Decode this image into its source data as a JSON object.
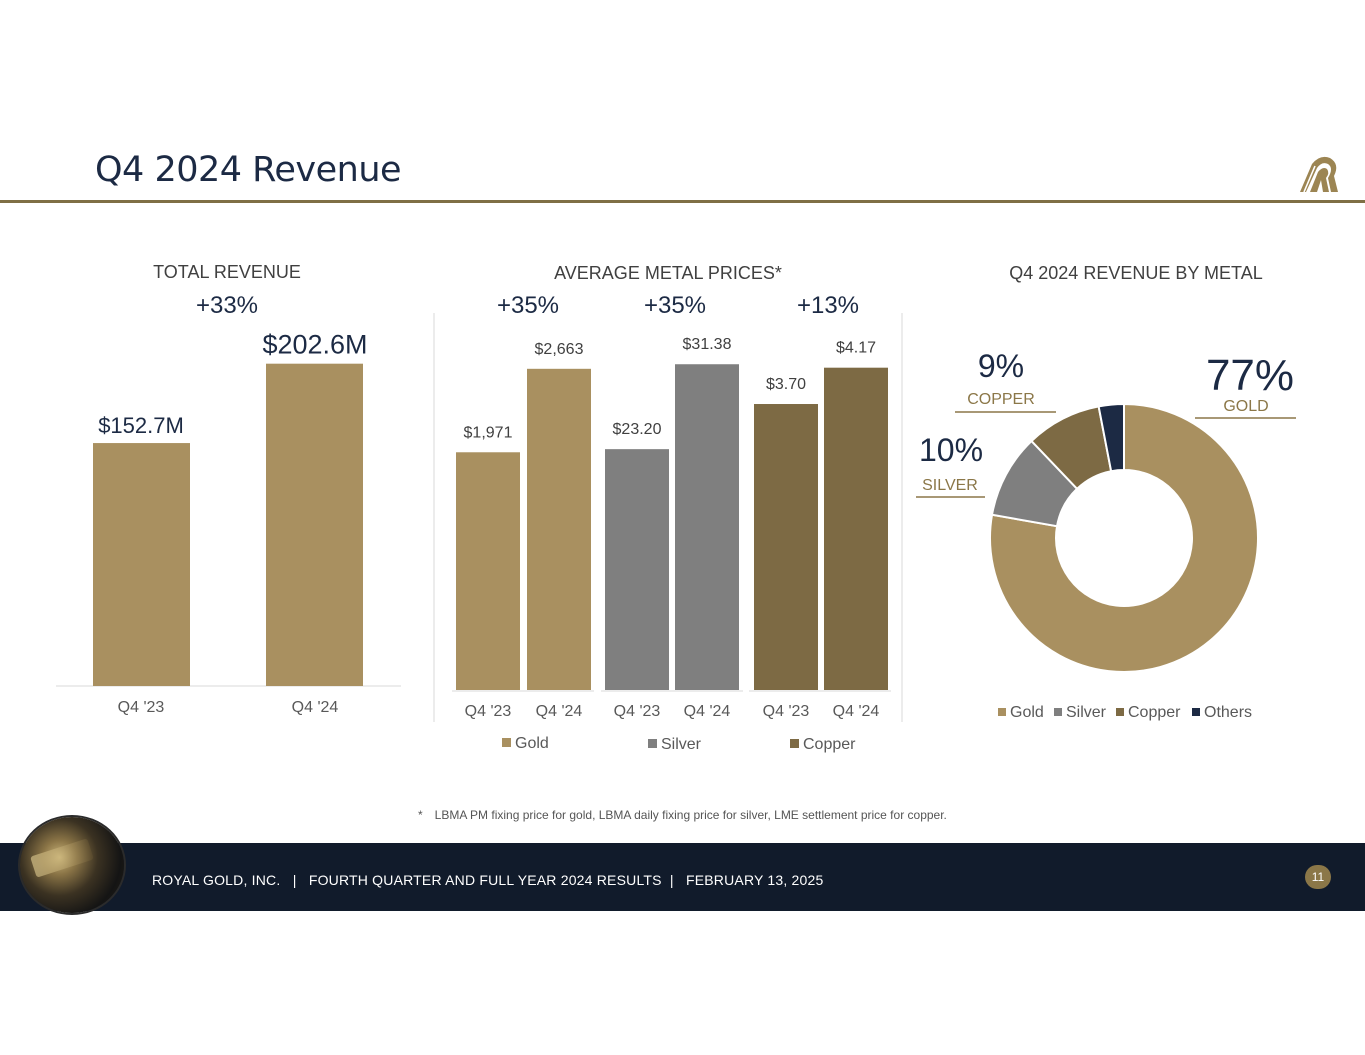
{
  "slide": {
    "title": "Q4 2024 Revenue",
    "footnote_star": "*",
    "footnote": "LBMA PM fixing price for gold, LBMA daily fixing price for silver, LME settlement price for copper.",
    "footer_text": "ROYAL GOLD, INC.   |   FOURTH QUARTER AND FULL YEAR 2024 RESULTS  |   FEBRUARY 13, 2025",
    "page_number": "11"
  },
  "colors": {
    "gold": "#a99060",
    "silver": "#7f7f7f",
    "copper": "#7d6a44",
    "others": "#1c2a44",
    "navy": "#1c2a44",
    "accent_text": "#8b7748",
    "footer_bg": "#111b2b"
  },
  "chart_data": [
    {
      "type": "bar",
      "title": "TOTAL REVENUE",
      "change_label": "+33%",
      "categories": [
        "Q4 '23",
        "Q4 '24"
      ],
      "values": [
        152.7,
        202.6
      ],
      "value_labels": [
        "$152.7M",
        "$202.6M"
      ],
      "units": "$M",
      "ylim": [
        0,
        220
      ]
    },
    {
      "type": "bar",
      "title": "AVERAGE METAL PRICES*",
      "groups": [
        {
          "name": "Gold",
          "change_label": "+35%",
          "categories": [
            "Q4 '23",
            "Q4 '24"
          ],
          "values": [
            1971,
            2663
          ],
          "value_labels": [
            "$1,971",
            "$2,663"
          ],
          "scale_max": 2935,
          "color": "#a99060"
        },
        {
          "name": "Silver",
          "change_label": "+35%",
          "categories": [
            "Q4 '23",
            "Q4 '24"
          ],
          "values": [
            23.2,
            31.38
          ],
          "value_labels": [
            "$23.20",
            "$31.38"
          ],
          "scale_max": 34.1,
          "color": "#7f7f7f"
        },
        {
          "name": "Copper",
          "change_label": "+13%",
          "categories": [
            "Q4 '23",
            "Q4 '24"
          ],
          "values": [
            3.7,
            4.17
          ],
          "value_labels": [
            "$3.70",
            "$4.17"
          ],
          "scale_max": 4.58,
          "color": "#7d6a44"
        }
      ],
      "legend": [
        "Gold",
        "Silver",
        "Copper"
      ]
    },
    {
      "type": "pie",
      "title": "Q4 2024 REVENUE BY METAL",
      "labels": [
        "Gold",
        "Silver",
        "Copper",
        "Others"
      ],
      "values": [
        77,
        10,
        9,
        3
      ],
      "callouts": [
        {
          "label": "GOLD",
          "value_label": "77%"
        },
        {
          "label": "SILVER",
          "value_label": "10%"
        },
        {
          "label": "COPPER",
          "value_label": "9%"
        }
      ],
      "legend": [
        "Gold",
        "Silver",
        "Copper",
        "Others"
      ]
    }
  ]
}
